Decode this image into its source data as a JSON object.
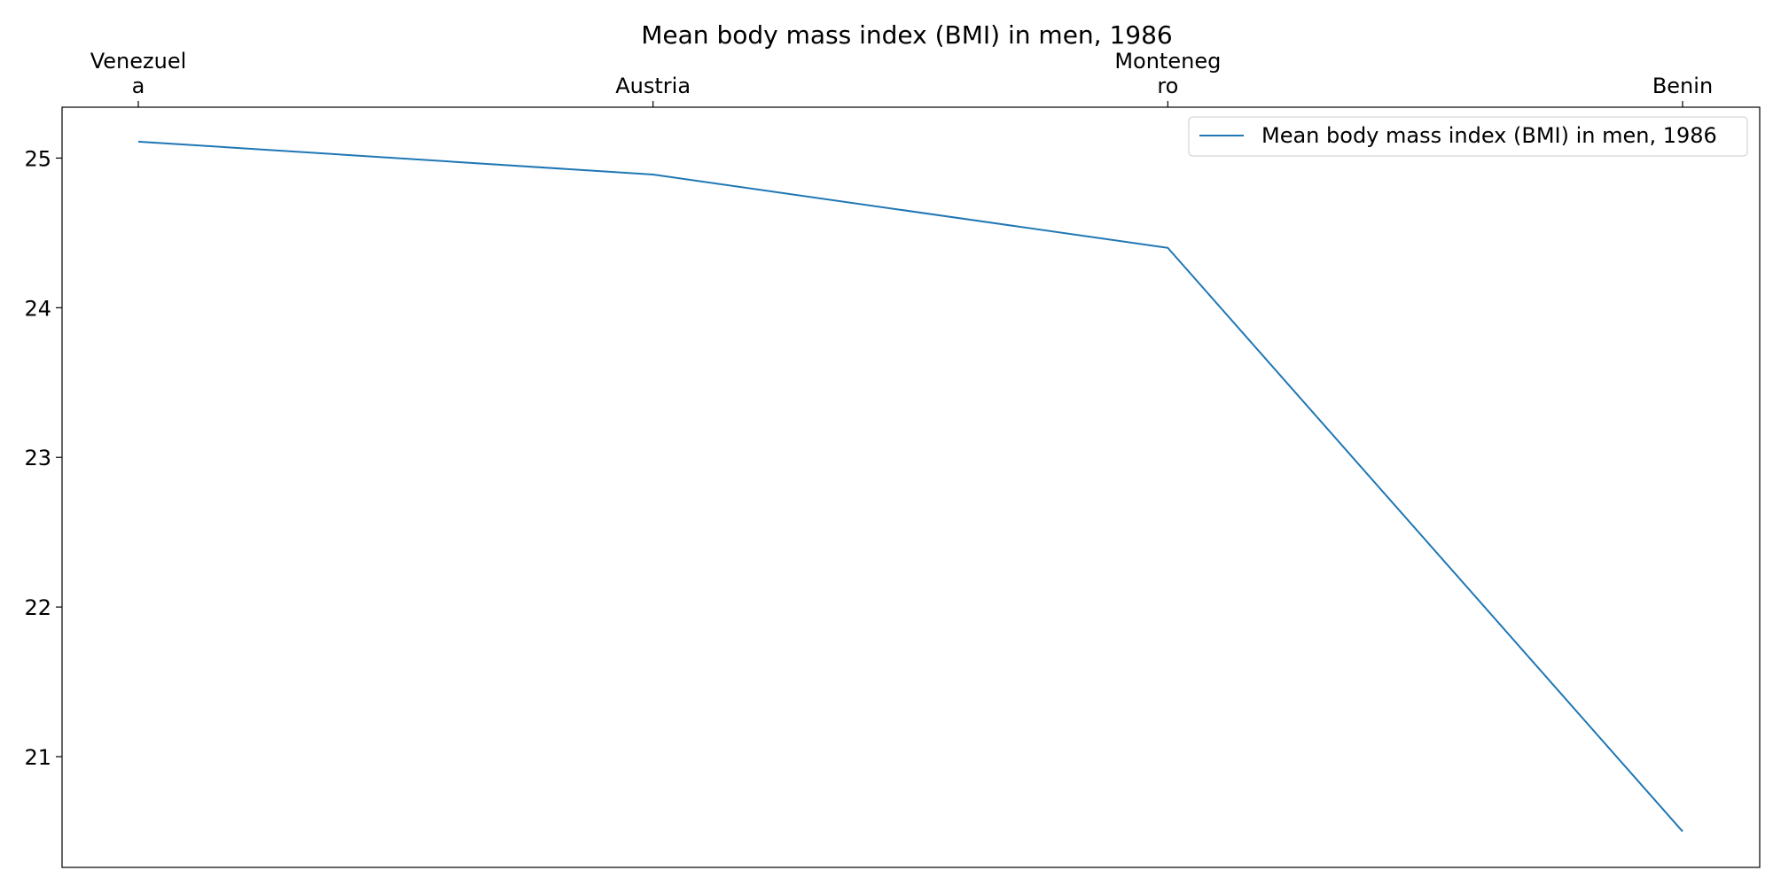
{
  "chart_data": {
    "type": "line",
    "title": "Mean body mass index (BMI) in men, 1986",
    "categories": [
      "Venezuela",
      "Austria",
      "Montenegro",
      "Benin"
    ],
    "category_tick_lines": [
      [
        "Venezuel",
        "a"
      ],
      [
        "Austria"
      ],
      [
        "Monteneg",
        "ro"
      ],
      [
        "Benin"
      ]
    ],
    "x_axis_position": "top",
    "series": [
      {
        "name": "Mean body mass index (BMI) in men, 1986",
        "values": [
          25.11,
          24.89,
          24.4,
          20.5
        ],
        "color": "#1f77b4"
      }
    ],
    "ylim": [
      20.26,
      25.34
    ],
    "yticks": [
      21,
      22,
      23,
      24,
      25
    ],
    "grid": false,
    "legend_position": "top-right"
  }
}
